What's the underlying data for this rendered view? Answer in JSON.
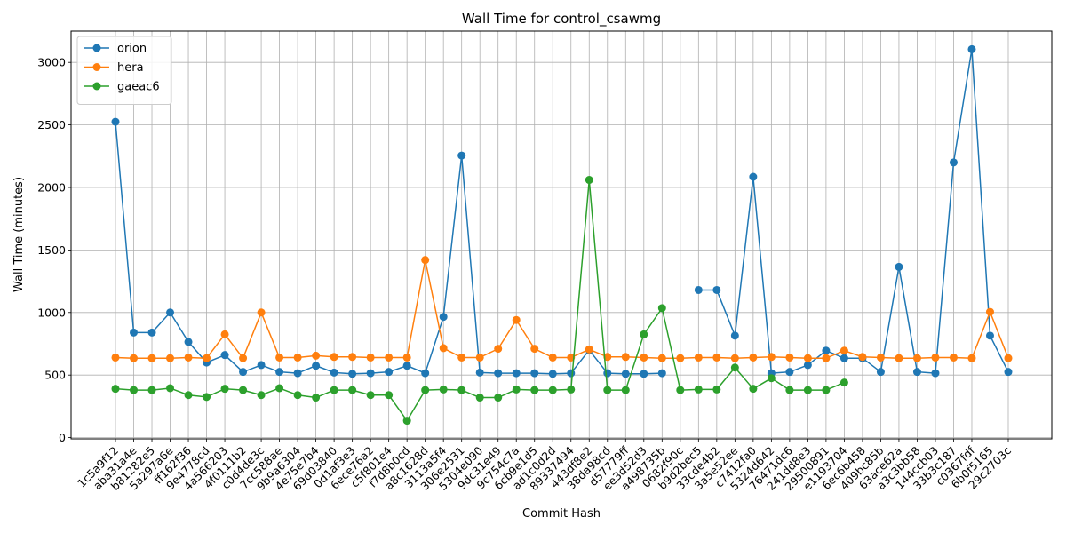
{
  "chart_data": {
    "type": "line",
    "title": "Wall Time for control_csawmg",
    "xlabel": "Commit Hash",
    "ylabel": "Wall Time (minutes)",
    "ylim": [
      -10,
      3250
    ],
    "yticks": [
      0,
      500,
      1000,
      1500,
      2000,
      2500,
      3000
    ],
    "grid": true,
    "legend_position": "top-left",
    "categories": [
      "1c5a9f12",
      "aba31a4e",
      "b81282e5",
      "5a297a6e",
      "ff162f36",
      "9e4778cd",
      "4a566203",
      "4f0111b2",
      "c0d4de3c",
      "7cc588ae",
      "9b9a6304",
      "4e75e7b4",
      "69d03840",
      "0d1af3e3",
      "6ece76a2",
      "c5f801e4",
      "f7d8b0cd",
      "a8c1628d",
      "3113a5f4",
      "306e2531",
      "5304e090",
      "9dc31e49",
      "9c754c7a",
      "6cb9e1d5",
      "ad1c0d2d",
      "89337494",
      "443df8e2",
      "38da98cd",
      "d57779ff",
      "ee3d52d3",
      "a498735b",
      "0682f90c",
      "b9d2bec5",
      "33cde4b2",
      "3a5e52ee",
      "c7412fa0",
      "5324d642",
      "76471dc6",
      "241dd8e3",
      "29500891",
      "e1193704",
      "6ec6b458",
      "409bc85b",
      "63ace62a",
      "a3c3bb58",
      "144ccb03",
      "33b3c187",
      "c0367fdf",
      "6b0f5165",
      "29c2703c"
    ],
    "series": [
      {
        "name": "orion",
        "color": "#1f77b4",
        "values": [
          2525,
          840,
          840,
          1000,
          765,
          600,
          660,
          525,
          580,
          525,
          515,
          575,
          520,
          510,
          515,
          525,
          575,
          515,
          965,
          2255,
          520,
          515,
          515,
          515,
          510,
          515,
          700,
          515,
          510,
          510,
          515,
          null,
          1180,
          1180,
          815,
          2085,
          515,
          525,
          580,
          695,
          635,
          635,
          525,
          1365,
          525,
          515,
          2200,
          3105,
          815,
          525
        ]
      },
      {
        "name": "hera",
        "color": "#ff7f0e",
        "values": [
          640,
          635,
          635,
          635,
          640,
          635,
          825,
          635,
          1000,
          640,
          640,
          655,
          645,
          645,
          640,
          640,
          640,
          1420,
          715,
          640,
          640,
          710,
          940,
          710,
          640,
          640,
          705,
          645,
          645,
          640,
          635,
          635,
          640,
          640,
          635,
          640,
          645,
          640,
          635,
          635,
          695,
          645,
          640,
          635,
          635,
          640,
          640,
          635,
          1005,
          635
        ]
      },
      {
        "name": "gaeac6",
        "color": "#2ca02c",
        "values": [
          390,
          380,
          380,
          395,
          340,
          325,
          390,
          380,
          340,
          395,
          340,
          320,
          380,
          380,
          340,
          340,
          135,
          380,
          385,
          380,
          320,
          320,
          385,
          380,
          380,
          385,
          2060,
          380,
          380,
          825,
          1035,
          380,
          385,
          385,
          560,
          390,
          475,
          380,
          380,
          380,
          440,
          null,
          null,
          null,
          null,
          null,
          null,
          null,
          null,
          null
        ]
      }
    ]
  }
}
